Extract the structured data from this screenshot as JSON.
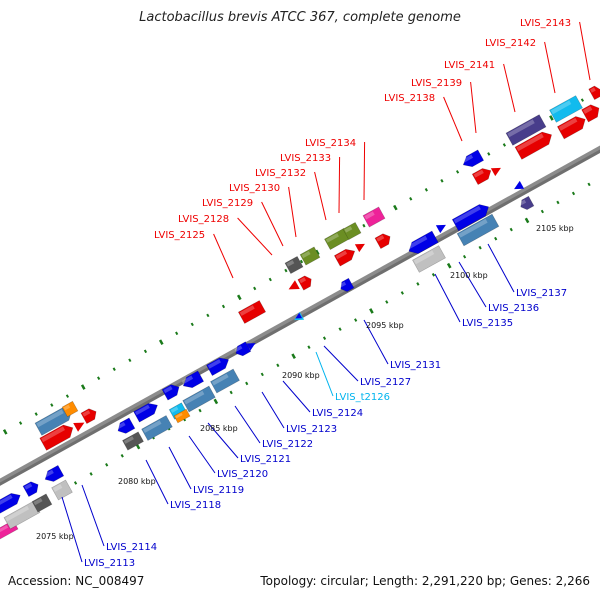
{
  "header": {
    "title": "Lactobacillus brevis ATCC 367, complete genome"
  },
  "footer": {
    "accession": "Accession: NC_008497",
    "summary": "Topology: circular; Length: 2,291,220 bp; Genes: 2,266"
  },
  "colors": {
    "backbone": "#8c8c8c",
    "upper_label": "#ee0000",
    "lower_label": "#0000cc",
    "trna_label": "#00b4ee",
    "tick": "#1a7a1a",
    "red_gene": "#e60000",
    "blue_gene": "#0000e6",
    "steel_gene": "#4682b4",
    "cyan_gene": "#11bbee",
    "purple_gene": "#483d8b",
    "olive_gene": "#6b8e23",
    "gray_gene": "#555555",
    "light_gene": "#c0c0c0",
    "orange_gene": "#ff8c00",
    "magenta_gene": "#ee2299"
  },
  "kbp_labels": [
    "2075 kbp",
    "2080 kbp",
    "2085 kbp",
    "2090 kbp",
    "2095 kbp",
    "2100 kbp",
    "2105 kbp"
  ],
  "upper_labels": [
    "LVIS_2125",
    "LVIS_2128",
    "LVIS_2129",
    "LVIS_2130",
    "LVIS_2132",
    "LVIS_2133",
    "LVIS_2134",
    "LVIS_2138",
    "LVIS_2139",
    "LVIS_2141",
    "LVIS_2142",
    "LVIS_2143"
  ],
  "lower_labels": [
    "LVIS_2113",
    "LVIS_2114",
    "LVIS_2118",
    "LVIS_2119",
    "LVIS_2120",
    "LVIS_2121",
    "LVIS_2122",
    "LVIS_2123",
    "LVIS_2124",
    "LVIS_t2126",
    "LVIS_2127",
    "LVIS_2131",
    "LVIS_2135",
    "LVIS_2136",
    "LVIS_2137"
  ]
}
